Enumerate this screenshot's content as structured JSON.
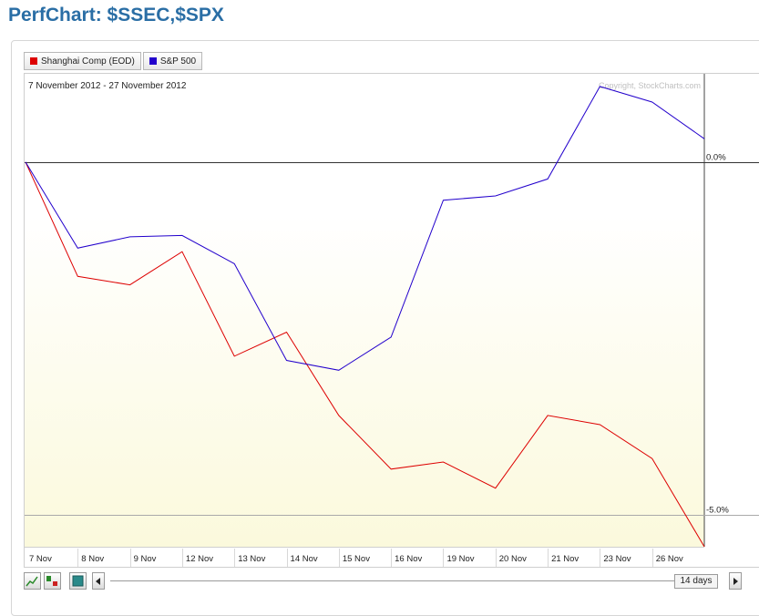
{
  "page": {
    "title": "PerfChart: $SSEC,$SPX"
  },
  "legend": [
    {
      "label": "Shanghai Comp (EOD)",
      "color": "#dd0000"
    },
    {
      "label": "S&P 500",
      "color": "#2200cc"
    }
  ],
  "chart": {
    "date_range": "7 November 2012 - 27 November 2012",
    "copyright": "Copyright, StockCharts.com",
    "period_label": "14 days"
  },
  "chart_data": {
    "type": "line",
    "x": [
      "7 Nov",
      "8 Nov",
      "9 Nov",
      "12 Nov",
      "13 Nov",
      "14 Nov",
      "15 Nov",
      "16 Nov",
      "19 Nov",
      "20 Nov",
      "21 Nov",
      "23 Nov",
      "26 Nov",
      "27 Nov"
    ],
    "x_tick_labels": [
      "7 Nov",
      "8 Nov",
      "9 Nov",
      "12 Nov",
      "13 Nov",
      "14 Nov",
      "15 Nov",
      "16 Nov",
      "19 Nov",
      "20 Nov",
      "21 Nov",
      "23 Nov",
      "26 Nov"
    ],
    "series": [
      {
        "name": "Shanghai Comp (EOD)",
        "color": "#dd0000",
        "values": [
          0.0,
          -1.62,
          -1.74,
          -1.27,
          -2.75,
          -2.41,
          -3.59,
          -4.35,
          -4.25,
          -4.62,
          -3.59,
          -3.72,
          -4.2,
          -5.45
        ]
      },
      {
        "name": "S&P 500",
        "color": "#2200cc",
        "values": [
          0.0,
          -1.22,
          -1.06,
          -1.04,
          -1.44,
          -2.81,
          -2.95,
          -2.48,
          -0.54,
          -0.48,
          -0.24,
          1.07,
          0.85,
          0.33
        ]
      }
    ],
    "y_ticks": [
      {
        "value": 0.0,
        "label": "0.0%"
      },
      {
        "value": -5.0,
        "label": "-5.0%"
      }
    ],
    "ylim": [
      -5.45,
      1.25
    ],
    "grid": true
  }
}
